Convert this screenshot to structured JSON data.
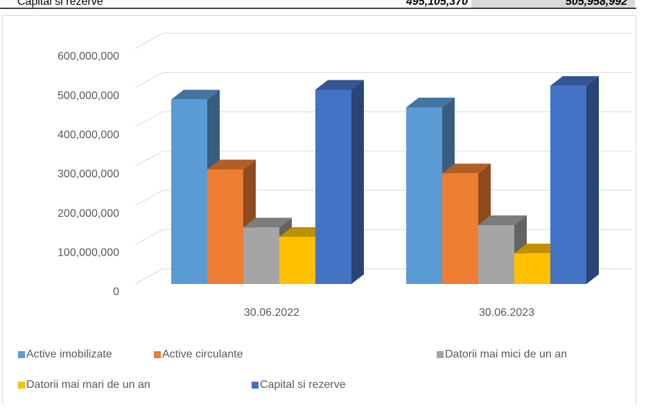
{
  "table_row": {
    "label": "Capital si rezerve",
    "values": [
      "495,105,370",
      "505,958,992"
    ]
  },
  "chart_data": {
    "type": "bar3d",
    "categories": [
      "30.06.2022",
      "30.06.2023"
    ],
    "series": [
      {
        "name": "Active imobilizate",
        "color": "#5b9bd5",
        "values": [
          470000000,
          450000000
        ]
      },
      {
        "name": "Active circulante",
        "color": "#ed7d31",
        "values": [
          292000000,
          282000000
        ]
      },
      {
        "name": "Datorii mai mici de un an",
        "color": "#a5a5a5",
        "values": [
          144000000,
          150000000
        ]
      },
      {
        "name": "Datorii mai mari de un an",
        "color": "#ffc000",
        "values": [
          120000000,
          78000000
        ]
      },
      {
        "name": "Capital si rezerve",
        "color": "#4472c4",
        "values": [
          495000000,
          505000000
        ]
      }
    ],
    "ylim": [
      0,
      600000000
    ],
    "yticks": [
      0,
      {
        "value": 100000000,
        "label": "100,000,000"
      },
      {
        "value": 200000000,
        "label": "200,000,000"
      },
      {
        "value": 300000000,
        "label": "300,000,000"
      },
      {
        "value": 400000000,
        "label": "400,000,000"
      },
      {
        "value": 500000000,
        "label": "500,000,000"
      },
      {
        "value": 600000000,
        "label": "600,000,000"
      }
    ],
    "grid": true,
    "legend": "bottom"
  }
}
